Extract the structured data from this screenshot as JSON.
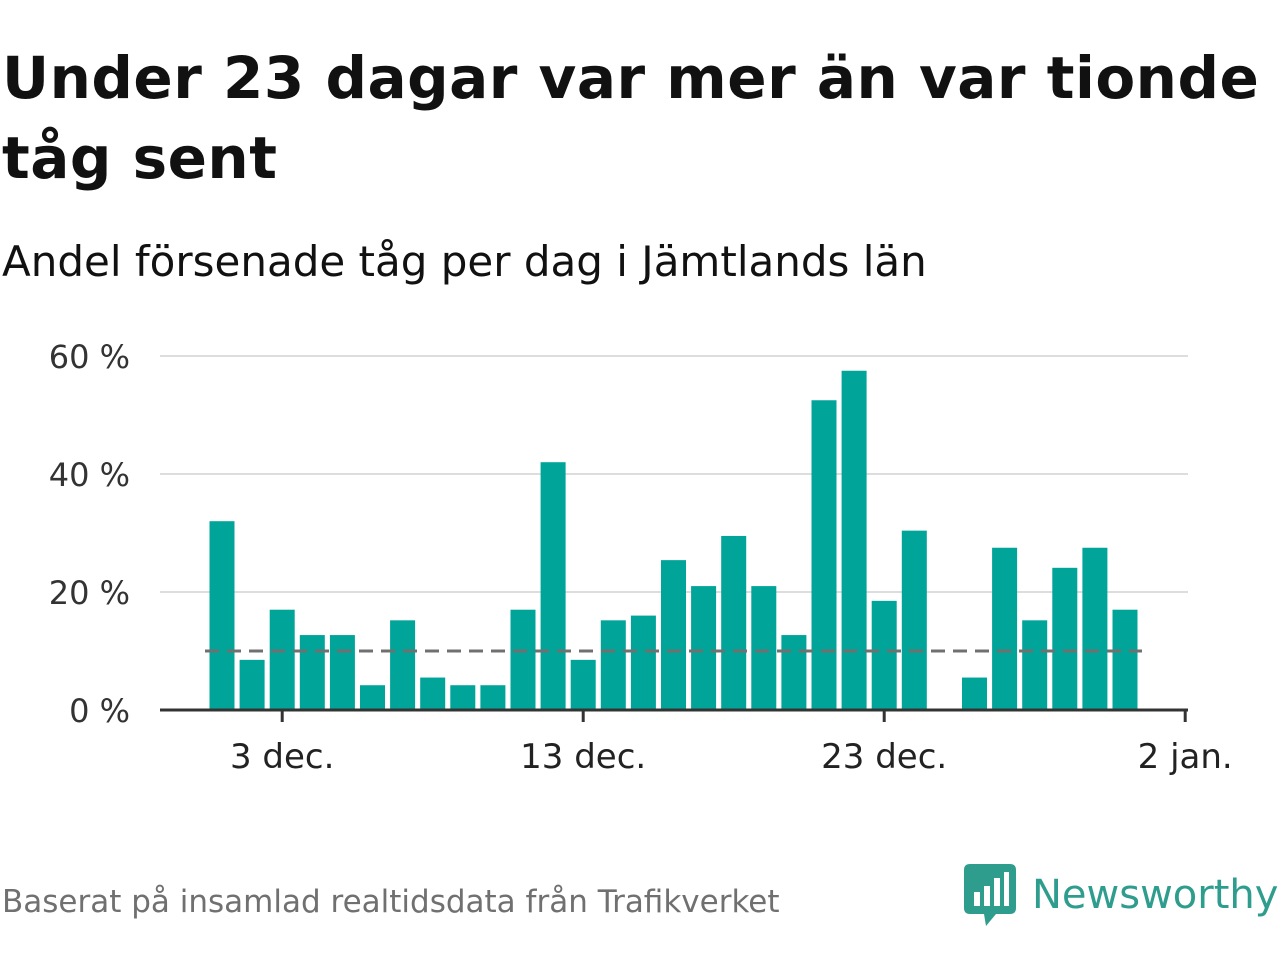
{
  "title": "Under 23 dagar var mer än var tionde tåg sent",
  "subtitle": "Andel försenade tåg per dag i Jämtlands län",
  "footer": "Baserat på insamlad realtidsdata från Trafikverket",
  "brand": {
    "name": "Newsworthy",
    "icon": "newsworthy-logo-icon",
    "color": "#2e9d8e"
  },
  "colors": {
    "bar": "#00a499",
    "reference_line": "#707070",
    "grid": "#dddddd",
    "axis": "#333333"
  },
  "chart_data": {
    "type": "bar",
    "x_start": "1 dec.",
    "x_ticks": [
      "3 dec.",
      "13 dec.",
      "23 dec.",
      "2 jan."
    ],
    "y_ticks": [
      "0 %",
      "20 %",
      "40 %",
      "60 %"
    ],
    "ylim": [
      0,
      60
    ],
    "unit": "%",
    "grid": true,
    "reference_line": {
      "value": 10,
      "style": "dashed"
    },
    "values": [
      32,
      8.5,
      17,
      12.7,
      12.7,
      4.2,
      15.2,
      5.5,
      4.2,
      4.2,
      17,
      42,
      8.5,
      15.2,
      16,
      25.4,
      21,
      29.5,
      21,
      12.7,
      52.5,
      57.5,
      18.5,
      30.4,
      0,
      5.5,
      27.5,
      15.2,
      24.1,
      27.5,
      17
    ]
  }
}
